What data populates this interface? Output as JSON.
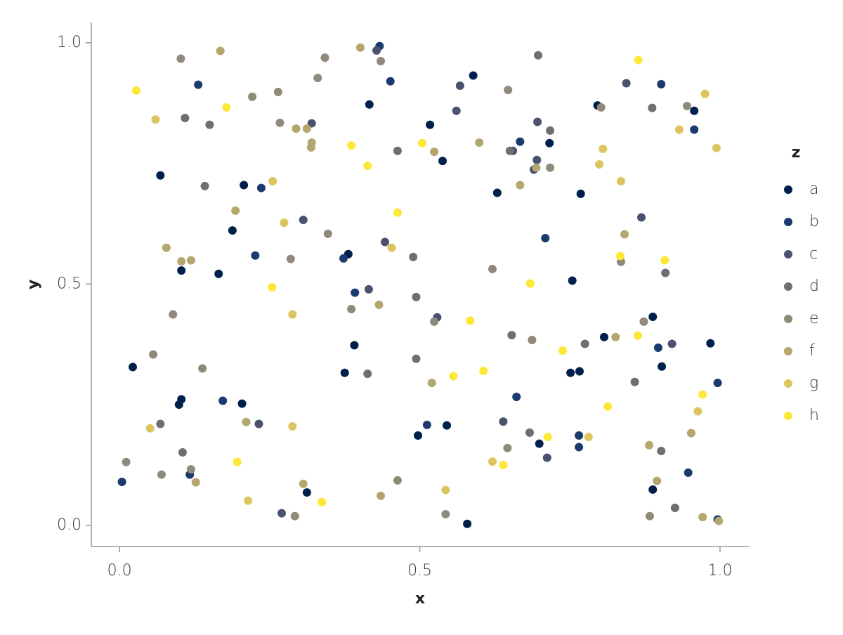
{
  "chart_data": {
    "type": "scatter",
    "x_label": "x",
    "y_label": "y",
    "legend_title": "z",
    "xlim": [
      -0.047,
      1.048
    ],
    "ylim": [
      -0.044,
      1.042
    ],
    "xticks": [
      {
        "value": 0,
        "label": "0.0"
      },
      {
        "value": 0.5,
        "label": "0.5"
      },
      {
        "value": 1,
        "label": "1.0"
      }
    ],
    "yticks": [
      {
        "value": 0,
        "label": "0.0"
      },
      {
        "value": 0.5,
        "label": "0.5"
      },
      {
        "value": 1,
        "label": "1.0"
      }
    ],
    "legend": "right",
    "series": [
      {
        "name": "a",
        "color": "#00204c",
        "x": [
          0.068,
          0.022,
          0.103,
          0.165,
          0.188,
          0.207,
          0.103,
          0.099,
          0.204,
          0.312,
          0.381,
          0.375,
          0.391,
          0.416,
          0.517,
          0.538,
          0.497,
          0.545,
          0.579,
          0.589,
          0.629,
          0.716,
          0.768,
          0.754,
          0.751,
          0.766,
          0.699,
          0.807,
          0.888,
          0.903,
          0.888,
          0.957,
          0.984,
          0.796
        ],
        "y": [
          0.725,
          0.328,
          0.528,
          0.521,
          0.611,
          0.705,
          0.261,
          0.25,
          0.252,
          0.068,
          0.562,
          0.316,
          0.373,
          0.872,
          0.83,
          0.755,
          0.186,
          0.207,
          0.003,
          0.932,
          0.689,
          0.792,
          0.687,
          0.507,
          0.316,
          0.319,
          0.169,
          0.39,
          0.432,
          0.329,
          0.074,
          0.859,
          0.377,
          0.87
        ]
      },
      {
        "name": "b",
        "color": "#1b3a6e",
        "x": [
          0.004,
          0.131,
          0.236,
          0.226,
          0.172,
          0.392,
          0.373,
          0.451,
          0.433,
          0.512,
          0.667,
          0.661,
          0.709,
          0.765,
          0.765,
          0.902,
          0.897,
          0.957,
          0.996,
          0.947,
          0.996,
          0.117
        ],
        "y": [
          0.09,
          0.913,
          0.699,
          0.559,
          0.258,
          0.482,
          0.553,
          0.92,
          0.993,
          0.208,
          0.795,
          0.266,
          0.595,
          0.186,
          0.162,
          0.914,
          0.368,
          0.82,
          0.295,
          0.109,
          0.012,
          0.105
        ]
      },
      {
        "name": "c",
        "color": "#4a5270",
        "x": [
          0.32,
          0.306,
          0.415,
          0.442,
          0.529,
          0.567,
          0.561,
          0.655,
          0.695,
          0.696,
          0.69,
          0.844,
          0.869,
          0.92,
          0.27,
          0.232,
          0.639,
          0.712,
          0.428
        ],
        "y": [
          0.833,
          0.633,
          0.489,
          0.587,
          0.431,
          0.911,
          0.859,
          0.776,
          0.757,
          0.836,
          0.737,
          0.916,
          0.638,
          0.376,
          0.025,
          0.21,
          0.215,
          0.14,
          0.984
        ]
      },
      {
        "name": "d",
        "color": "#6e6e73",
        "x": [
          0.142,
          0.15,
          0.109,
          0.068,
          0.105,
          0.413,
          0.489,
          0.494,
          0.494,
          0.463,
          0.65,
          0.697,
          0.887,
          0.909,
          0.653,
          0.683,
          0.925,
          0.902,
          0.858,
          0.775,
          0.717
        ],
        "y": [
          0.703,
          0.83,
          0.844,
          0.21,
          0.151,
          0.314,
          0.556,
          0.473,
          0.345,
          0.776,
          0.776,
          0.974,
          0.865,
          0.523,
          0.394,
          0.192,
          0.036,
          0.154,
          0.297,
          0.376,
          0.818
        ]
      },
      {
        "name": "e",
        "color": "#8f8a7a",
        "x": [
          0.102,
          0.221,
          0.264,
          0.267,
          0.342,
          0.33,
          0.347,
          0.386,
          0.524,
          0.435,
          0.463,
          0.543,
          0.647,
          0.621,
          0.687,
          0.835,
          0.873,
          0.802,
          0.945,
          0.883,
          0.646,
          0.056,
          0.011,
          0.119,
          0.292,
          0.089,
          0.07,
          0.138,
          0.285,
          0.717
        ],
        "y": [
          0.967,
          0.888,
          0.898,
          0.834,
          0.969,
          0.927,
          0.604,
          0.448,
          0.422,
          0.962,
          0.093,
          0.023,
          0.902,
          0.531,
          0.384,
          0.546,
          0.422,
          0.866,
          0.869,
          0.019,
          0.16,
          0.354,
          0.131,
          0.116,
          0.019,
          0.437,
          0.105,
          0.325,
          0.552,
          0.741
        ]
      },
      {
        "name": "f",
        "color": "#b4a76e",
        "x": [
          0.168,
          0.401,
          0.193,
          0.078,
          0.103,
          0.119,
          0.32,
          0.294,
          0.312,
          0.319,
          0.432,
          0.599,
          0.667,
          0.694,
          0.524,
          0.826,
          0.841,
          0.882,
          0.895,
          0.952,
          0.971,
          0.998,
          0.435,
          0.211,
          0.127,
          0.306,
          0.52
        ],
        "y": [
          0.983,
          0.99,
          0.652,
          0.575,
          0.547,
          0.549,
          0.793,
          0.822,
          0.822,
          0.783,
          0.457,
          0.793,
          0.705,
          0.741,
          0.774,
          0.39,
          0.603,
          0.166,
          0.092,
          0.191,
          0.017,
          0.009,
          0.061,
          0.214,
          0.089,
          0.086,
          0.295
        ]
      },
      {
        "name": "g",
        "color": "#dcc55e",
        "x": [
          0.06,
          0.255,
          0.274,
          0.288,
          0.288,
          0.214,
          0.051,
          0.453,
          0.543,
          0.621,
          0.805,
          0.799,
          0.835,
          0.932,
          0.975,
          0.994,
          0.963,
          0.781
        ],
        "y": [
          0.841,
          0.713,
          0.627,
          0.437,
          0.205,
          0.051,
          0.201,
          0.575,
          0.073,
          0.132,
          0.78,
          0.748,
          0.713,
          0.82,
          0.894,
          0.782,
          0.236,
          0.183
        ]
      },
      {
        "name": "h",
        "color": "#fde737",
        "x": [
          0.028,
          0.178,
          0.254,
          0.386,
          0.413,
          0.463,
          0.504,
          0.584,
          0.556,
          0.606,
          0.639,
          0.684,
          0.738,
          0.813,
          0.863,
          0.908,
          0.971,
          0.864,
          0.196,
          0.337,
          0.834,
          0.713
        ],
        "y": [
          0.901,
          0.866,
          0.493,
          0.787,
          0.745,
          0.648,
          0.792,
          0.424,
          0.309,
          0.32,
          0.125,
          0.501,
          0.362,
          0.246,
          0.393,
          0.549,
          0.271,
          0.964,
          0.131,
          0.048,
          0.558,
          0.183
        ]
      }
    ]
  }
}
